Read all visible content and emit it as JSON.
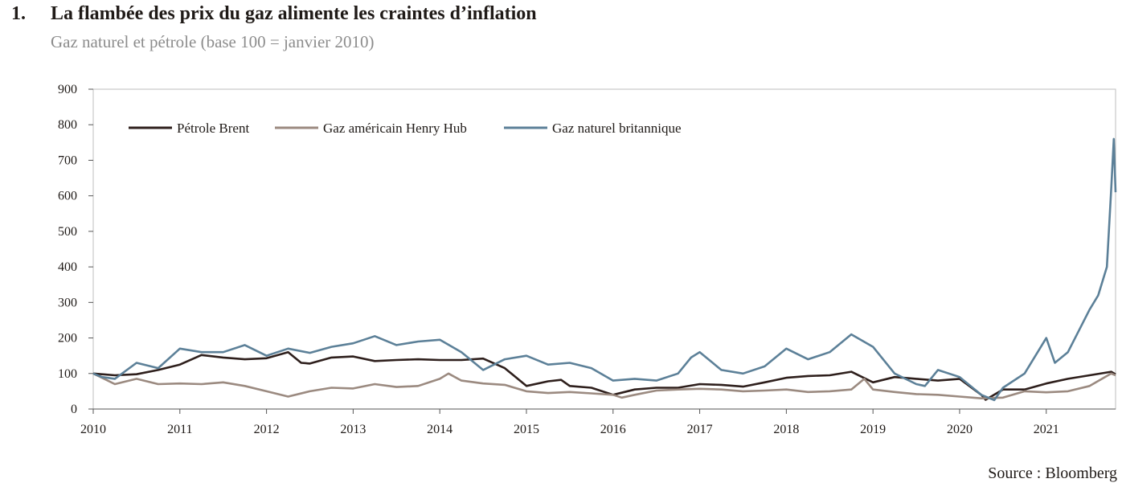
{
  "header": {
    "number": "1.",
    "title": "La flambée des prix du gaz alimente les craintes d’inflation",
    "subtitle": "Gaz naturel et pétrole (base 100 = janvier 2010)"
  },
  "footer": {
    "source": "Source : Bloomberg"
  },
  "chart_data": {
    "type": "line",
    "title": "La flambée des prix du gaz alimente les craintes d’inflation",
    "subtitle": "Gaz naturel et pétrole (base 100 = janvier 2010)",
    "xlabel": "",
    "ylabel": "",
    "x_ticks": [
      "2010",
      "2011",
      "2012",
      "2013",
      "2014",
      "2015",
      "2016",
      "2017",
      "2018",
      "2019",
      "2020",
      "2021"
    ],
    "y_ticks": [
      0,
      100,
      200,
      300,
      400,
      500,
      600,
      700,
      800,
      900
    ],
    "xlim": [
      2010.0,
      2021.8
    ],
    "ylim": [
      0,
      900
    ],
    "grid": false,
    "legend_position": "top-left",
    "series": [
      {
        "name": "Pétrole Brent",
        "color": "#2e1f1c",
        "points": [
          [
            2010.0,
            100
          ],
          [
            2010.25,
            95
          ],
          [
            2010.5,
            98
          ],
          [
            2010.75,
            110
          ],
          [
            2011.0,
            125
          ],
          [
            2011.25,
            152
          ],
          [
            2011.5,
            145
          ],
          [
            2011.75,
            140
          ],
          [
            2012.0,
            143
          ],
          [
            2012.25,
            160
          ],
          [
            2012.4,
            130
          ],
          [
            2012.5,
            128
          ],
          [
            2012.75,
            145
          ],
          [
            2013.0,
            148
          ],
          [
            2013.25,
            135
          ],
          [
            2013.5,
            138
          ],
          [
            2013.75,
            140
          ],
          [
            2014.0,
            138
          ],
          [
            2014.25,
            138
          ],
          [
            2014.5,
            142
          ],
          [
            2014.75,
            115
          ],
          [
            2015.0,
            65
          ],
          [
            2015.25,
            78
          ],
          [
            2015.4,
            82
          ],
          [
            2015.5,
            65
          ],
          [
            2015.75,
            60
          ],
          [
            2016.0,
            40
          ],
          [
            2016.25,
            55
          ],
          [
            2016.5,
            60
          ],
          [
            2016.75,
            60
          ],
          [
            2017.0,
            70
          ],
          [
            2017.25,
            68
          ],
          [
            2017.5,
            63
          ],
          [
            2017.75,
            75
          ],
          [
            2018.0,
            88
          ],
          [
            2018.25,
            93
          ],
          [
            2018.5,
            95
          ],
          [
            2018.75,
            105
          ],
          [
            2019.0,
            75
          ],
          [
            2019.25,
            90
          ],
          [
            2019.5,
            85
          ],
          [
            2019.75,
            80
          ],
          [
            2020.0,
            85
          ],
          [
            2020.25,
            40
          ],
          [
            2020.3,
            26
          ],
          [
            2020.5,
            55
          ],
          [
            2020.75,
            55
          ],
          [
            2021.0,
            72
          ],
          [
            2021.25,
            85
          ],
          [
            2021.5,
            95
          ],
          [
            2021.75,
            105
          ],
          [
            2021.8,
            98
          ]
        ]
      },
      {
        "name": "Gaz américain Henry Hub",
        "color": "#9b8a80",
        "points": [
          [
            2010.0,
            100
          ],
          [
            2010.15,
            82
          ],
          [
            2010.25,
            70
          ],
          [
            2010.5,
            85
          ],
          [
            2010.75,
            70
          ],
          [
            2011.0,
            72
          ],
          [
            2011.25,
            70
          ],
          [
            2011.5,
            75
          ],
          [
            2011.75,
            65
          ],
          [
            2012.0,
            50
          ],
          [
            2012.25,
            35
          ],
          [
            2012.5,
            50
          ],
          [
            2012.75,
            60
          ],
          [
            2013.0,
            58
          ],
          [
            2013.25,
            70
          ],
          [
            2013.5,
            62
          ],
          [
            2013.75,
            65
          ],
          [
            2014.0,
            85
          ],
          [
            2014.1,
            100
          ],
          [
            2014.25,
            80
          ],
          [
            2014.5,
            72
          ],
          [
            2014.75,
            68
          ],
          [
            2015.0,
            50
          ],
          [
            2015.25,
            45
          ],
          [
            2015.5,
            48
          ],
          [
            2015.75,
            44
          ],
          [
            2016.0,
            40
          ],
          [
            2016.1,
            32
          ],
          [
            2016.25,
            40
          ],
          [
            2016.5,
            52
          ],
          [
            2016.75,
            55
          ],
          [
            2017.0,
            57
          ],
          [
            2017.25,
            55
          ],
          [
            2017.5,
            50
          ],
          [
            2017.75,
            52
          ],
          [
            2018.0,
            55
          ],
          [
            2018.25,
            48
          ],
          [
            2018.5,
            50
          ],
          [
            2018.75,
            55
          ],
          [
            2018.9,
            85
          ],
          [
            2019.0,
            55
          ],
          [
            2019.25,
            48
          ],
          [
            2019.5,
            42
          ],
          [
            2019.75,
            40
          ],
          [
            2020.0,
            35
          ],
          [
            2020.25,
            30
          ],
          [
            2020.5,
            32
          ],
          [
            2020.75,
            50
          ],
          [
            2021.0,
            47
          ],
          [
            2021.25,
            50
          ],
          [
            2021.5,
            65
          ],
          [
            2021.75,
            100
          ],
          [
            2021.8,
            95
          ]
        ]
      },
      {
        "name": "Gaz naturel britannique",
        "color": "#5c8098",
        "points": [
          [
            2010.0,
            100
          ],
          [
            2010.1,
            90
          ],
          [
            2010.25,
            85
          ],
          [
            2010.5,
            130
          ],
          [
            2010.75,
            115
          ],
          [
            2011.0,
            170
          ],
          [
            2011.25,
            160
          ],
          [
            2011.5,
            160
          ],
          [
            2011.75,
            180
          ],
          [
            2012.0,
            150
          ],
          [
            2012.25,
            170
          ],
          [
            2012.5,
            158
          ],
          [
            2012.75,
            175
          ],
          [
            2013.0,
            185
          ],
          [
            2013.25,
            205
          ],
          [
            2013.5,
            180
          ],
          [
            2013.75,
            190
          ],
          [
            2014.0,
            195
          ],
          [
            2014.25,
            160
          ],
          [
            2014.5,
            110
          ],
          [
            2014.75,
            140
          ],
          [
            2015.0,
            150
          ],
          [
            2015.25,
            125
          ],
          [
            2015.5,
            130
          ],
          [
            2015.75,
            115
          ],
          [
            2016.0,
            80
          ],
          [
            2016.25,
            85
          ],
          [
            2016.5,
            80
          ],
          [
            2016.75,
            100
          ],
          [
            2016.9,
            145
          ],
          [
            2017.0,
            160
          ],
          [
            2017.25,
            110
          ],
          [
            2017.5,
            100
          ],
          [
            2017.75,
            120
          ],
          [
            2018.0,
            170
          ],
          [
            2018.25,
            140
          ],
          [
            2018.5,
            160
          ],
          [
            2018.75,
            210
          ],
          [
            2019.0,
            175
          ],
          [
            2019.25,
            100
          ],
          [
            2019.5,
            70
          ],
          [
            2019.6,
            65
          ],
          [
            2019.75,
            110
          ],
          [
            2020.0,
            90
          ],
          [
            2020.25,
            40
          ],
          [
            2020.4,
            25
          ],
          [
            2020.5,
            60
          ],
          [
            2020.75,
            100
          ],
          [
            2021.0,
            200
          ],
          [
            2021.1,
            130
          ],
          [
            2021.25,
            160
          ],
          [
            2021.5,
            280
          ],
          [
            2021.6,
            320
          ],
          [
            2021.7,
            400
          ],
          [
            2021.75,
            620
          ],
          [
            2021.78,
            760
          ],
          [
            2021.8,
            610
          ]
        ]
      }
    ]
  }
}
